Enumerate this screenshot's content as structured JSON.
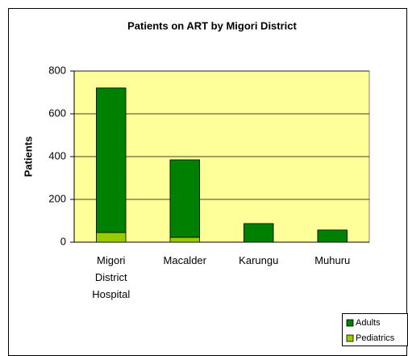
{
  "chart_data": {
    "type": "stacked_bar",
    "title": "Patients on ART by Migori District",
    "y_label": "Patients",
    "categories": [
      "Migori District Hospital",
      "Macalder",
      "Karungu",
      "Muhuru"
    ],
    "series": [
      {
        "name": "Pediatrics",
        "color": "#99cc00",
        "values": [
          45,
          23,
          0,
          0
        ]
      },
      {
        "name": "Adults",
        "color": "#008000",
        "values": [
          676,
          362,
          87,
          57
        ]
      }
    ],
    "ylim": [
      0,
      800
    ],
    "yticks": [
      0,
      200,
      400,
      600,
      800
    ],
    "grid": true,
    "legend": "bottom-right"
  }
}
